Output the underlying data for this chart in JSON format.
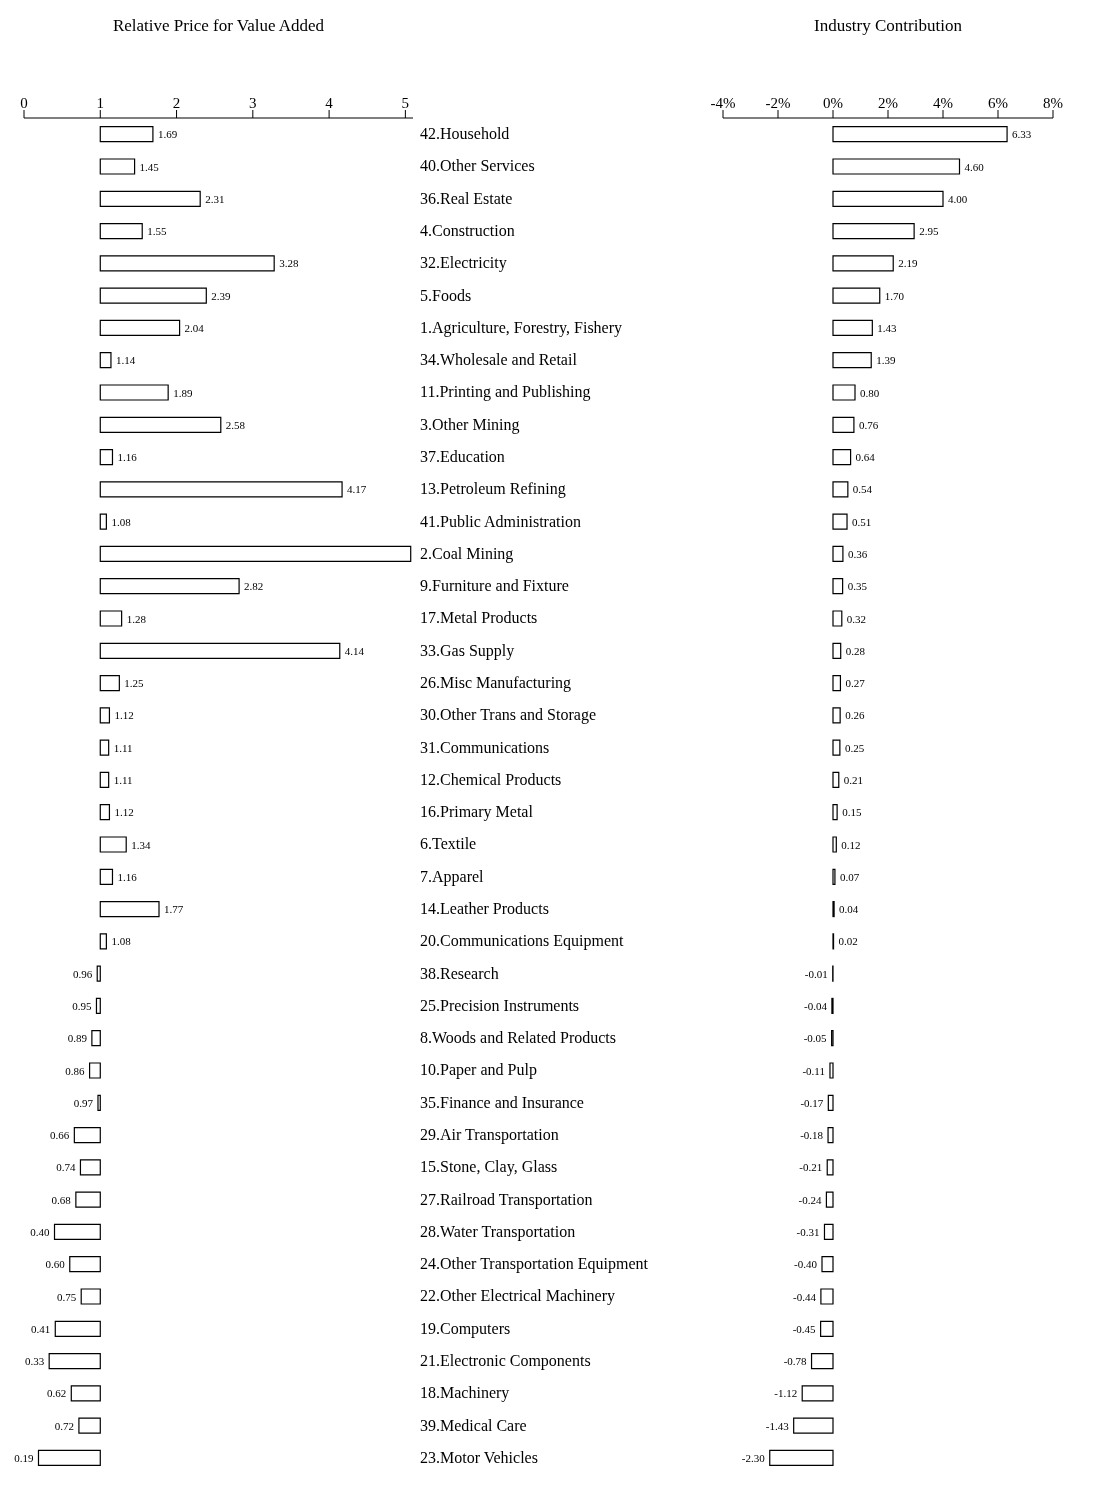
{
  "chart_data": [
    {
      "type": "bar",
      "orientation": "horizontal",
      "title": "Relative Price for Value Added",
      "tick_labels": "x",
      "color": "#ffffff",
      "xlim": [
        0,
        5.1
      ],
      "xticks": [
        0,
        1,
        2,
        3,
        4,
        5
      ],
      "categories": [
        null,
        null,
        null,
        null,
        null,
        null,
        null,
        null,
        null,
        null,
        null,
        null,
        null,
        null,
        null,
        null,
        null,
        null,
        null,
        null,
        null,
        null,
        null,
        null,
        null,
        null,
        null,
        null,
        null,
        null,
        null,
        null,
        null,
        null,
        null,
        null,
        null,
        null,
        null,
        null,
        null,
        null
      ],
      "base": [
        1,
        1,
        1,
        1,
        1,
        1,
        1,
        1,
        1,
        1,
        1,
        1,
        1,
        1,
        1,
        1,
        1,
        1,
        1,
        1,
        1,
        1,
        1,
        1,
        1,
        1,
        1,
        1,
        1,
        1,
        1,
        1,
        1,
        1,
        1,
        1,
        1,
        1,
        1,
        1,
        1,
        1
      ],
      "values": [
        0.69,
        0.45,
        1.31,
        0.55,
        2.28,
        1.39,
        1.04,
        0.14,
        0.89,
        1.58,
        0.16,
        3.17,
        0.08,
        4.07,
        1.82,
        0.28,
        3.14,
        0.25,
        0.12,
        0.11,
        0.11,
        0.12,
        0.34,
        0.16,
        0.77,
        0.08,
        -0.04,
        -0.05,
        -0.11,
        -0.14,
        -0.03,
        -0.34,
        -0.26,
        -0.32,
        -0.6,
        -0.4,
        -0.25,
        -0.59,
        -0.67,
        -0.38,
        -0.28,
        -0.81
      ],
      "value_labels": [
        "1.69",
        "1.45",
        "2.31",
        "1.55",
        "3.28",
        "2.39",
        "2.04",
        "1.14",
        "1.89",
        "2.58",
        "1.16",
        "4.17",
        "1.08",
        null,
        "2.82",
        "1.28",
        "4.14",
        "1.25",
        "1.12",
        "1.11",
        "1.11",
        "1.12",
        "1.34",
        "1.16",
        "1.77",
        "1.08",
        "0.96",
        "0.95",
        "0.89",
        "0.86",
        "0.97",
        "0.66",
        "0.74",
        "0.68",
        "0.40",
        "0.60",
        "0.75",
        "0.41",
        "0.33",
        "0.62",
        "0.72",
        "0.19"
      ]
    },
    {
      "type": "bar",
      "orientation": "horizontal",
      "title": "Industry Contribution",
      "color": "#ffffff",
      "xlim": [
        -4,
        8
      ],
      "xticks": [
        {
          "value": -4,
          "label": "-4%"
        },
        {
          "value": -2,
          "label": "-2%"
        },
        {
          "value": 0,
          "label": "0%"
        },
        {
          "value": 2,
          "label": "2%"
        },
        {
          "value": 4,
          "label": "4%"
        },
        {
          "value": 6,
          "label": "6%"
        },
        {
          "value": 8,
          "label": "8%"
        }
      ],
      "categories": [
        "42.Household",
        "40.Other Services",
        "36.Real Estate",
        "4.Construction",
        "32.Electricity",
        "5.Foods",
        "1.Agriculture, Forestry, Fishery",
        "34.Wholesale and Retail",
        "11.Printing and Publishing",
        "3.Other Mining",
        "37.Education",
        "13.Petroleum Refining",
        "41.Public Administration",
        "2.Coal Mining",
        "9.Furniture and Fixture",
        "17.Metal Products",
        "33.Gas Supply",
        "26.Misc Manufacturing",
        "30.Other Trans and Storage",
        "31.Communications",
        "12.Chemical Products",
        "16.Primary Metal",
        "6.Textile",
        "7.Apparel",
        "14.Leather Products",
        "20.Communications Equipment",
        "38.Research",
        "25.Precision Instruments",
        "8.Woods and Related Products",
        "10.Paper and Pulp",
        "35.Finance and Insurance",
        "29.Air Transportation",
        "15.Stone, Clay, Glass",
        "27.Railroad Transportation",
        "28.Water Transportation",
        "24.Other Transportation Equipment",
        "22.Other Electrical Machinery",
        "19.Computers",
        "21.Electronic Components",
        "18.Machinery",
        "39.Medical Care",
        "23.Motor Vehicles"
      ],
      "values": [
        6.33,
        4.6,
        4.0,
        2.95,
        2.19,
        1.7,
        1.43,
        1.39,
        0.8,
        0.76,
        0.64,
        0.54,
        0.51,
        0.36,
        0.35,
        0.32,
        0.28,
        0.27,
        0.26,
        0.25,
        0.21,
        0.15,
        0.12,
        0.07,
        0.04,
        0.02,
        -0.01,
        -0.04,
        -0.05,
        -0.11,
        -0.17,
        -0.18,
        -0.21,
        -0.24,
        -0.31,
        -0.4,
        -0.44,
        -0.45,
        -0.78,
        -1.12,
        -1.43,
        -2.3
      ],
      "value_labels": [
        "6.33",
        "4.60",
        "4.00",
        "2.95",
        "2.19",
        "1.70",
        "1.43",
        "1.39",
        "0.80",
        "0.76",
        "0.64",
        "0.54",
        "0.51",
        "0.36",
        "0.35",
        "0.32",
        "0.28",
        "0.27",
        "0.26",
        "0.25",
        "0.21",
        "0.15",
        "0.12",
        "0.07",
        "0.04",
        "0.02",
        "-0.01",
        "-0.04",
        "-0.05",
        "-0.11",
        "-0.17",
        "-0.18",
        "-0.21",
        "-0.24",
        "-0.31",
        "-0.40",
        "-0.44",
        "-0.45",
        "-0.78",
        "-1.12",
        "-1.43",
        "-2.30"
      ]
    }
  ]
}
